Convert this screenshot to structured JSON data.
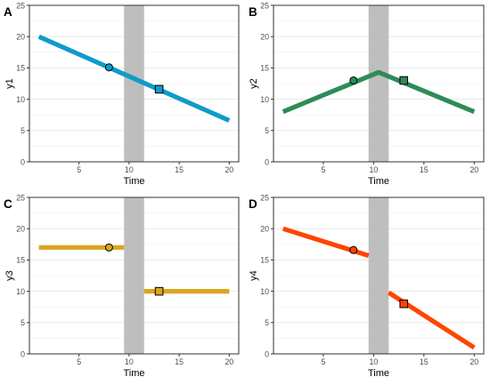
{
  "chart_data": [
    {
      "panel_tag": "A",
      "type": "line",
      "xlabel": "Time",
      "ylabel": "y1",
      "xlim": [
        0.05,
        20.95
      ],
      "ylim": [
        0,
        25
      ],
      "xticks": [
        5,
        10,
        15,
        20
      ],
      "yticks": [
        0,
        5,
        10,
        15,
        20,
        25
      ],
      "grid": true,
      "shaded_band": [
        9.5,
        11.5
      ],
      "line_color": "#0F9BCB",
      "segments": [
        {
          "x": [
            1,
            20
          ],
          "y": [
            20,
            6.6
          ]
        }
      ],
      "markers": [
        {
          "shape": "circle",
          "x": 8,
          "y": 15.1
        },
        {
          "shape": "square",
          "x": 13,
          "y": 11.6
        }
      ]
    },
    {
      "panel_tag": "B",
      "type": "line",
      "xlabel": "Time",
      "ylabel": "y2",
      "xlim": [
        0.05,
        20.95
      ],
      "ylim": [
        0,
        25
      ],
      "xticks": [
        5,
        10,
        15,
        20
      ],
      "yticks": [
        0,
        5,
        10,
        15,
        20,
        25
      ],
      "grid": true,
      "shaded_band": [
        9.5,
        11.5
      ],
      "line_color": "#2E8B57",
      "segments": [
        {
          "x": [
            1,
            10.5,
            20
          ],
          "y": [
            8,
            14.3,
            8
          ]
        }
      ],
      "markers": [
        {
          "shape": "circle",
          "x": 8,
          "y": 13
        },
        {
          "shape": "square",
          "x": 13,
          "y": 13
        }
      ]
    },
    {
      "panel_tag": "C",
      "type": "line",
      "xlabel": "Time",
      "ylabel": "y3",
      "xlim": [
        0.05,
        20.95
      ],
      "ylim": [
        0,
        25
      ],
      "xticks": [
        5,
        10,
        15,
        20
      ],
      "yticks": [
        0,
        5,
        10,
        15,
        20,
        25
      ],
      "grid": true,
      "shaded_band": [
        9.5,
        11.5
      ],
      "line_color": "#DAA520",
      "segments": [
        {
          "x": [
            1,
            9.5
          ],
          "y": [
            17,
            17
          ]
        },
        {
          "x": [
            11.5,
            20
          ],
          "y": [
            10,
            10
          ]
        }
      ],
      "markers": [
        {
          "shape": "circle",
          "x": 8,
          "y": 17
        },
        {
          "shape": "square",
          "x": 13,
          "y": 10
        }
      ]
    },
    {
      "panel_tag": "D",
      "type": "line",
      "xlabel": "Time",
      "ylabel": "y4",
      "xlim": [
        0.05,
        20.95
      ],
      "ylim": [
        0,
        25
      ],
      "xticks": [
        5,
        10,
        15,
        20
      ],
      "yticks": [
        0,
        5,
        10,
        15,
        20,
        25
      ],
      "grid": true,
      "shaded_band": [
        9.5,
        11.5
      ],
      "line_color": "#FF4500",
      "segments": [
        {
          "x": [
            1,
            9.5
          ],
          "y": [
            20,
            15.7
          ]
        },
        {
          "x": [
            11.5,
            20
          ],
          "y": [
            9.8,
            1
          ]
        }
      ],
      "markers": [
        {
          "shape": "circle",
          "x": 8,
          "y": 16.6
        },
        {
          "shape": "square",
          "x": 13,
          "y": 8
        }
      ]
    }
  ]
}
